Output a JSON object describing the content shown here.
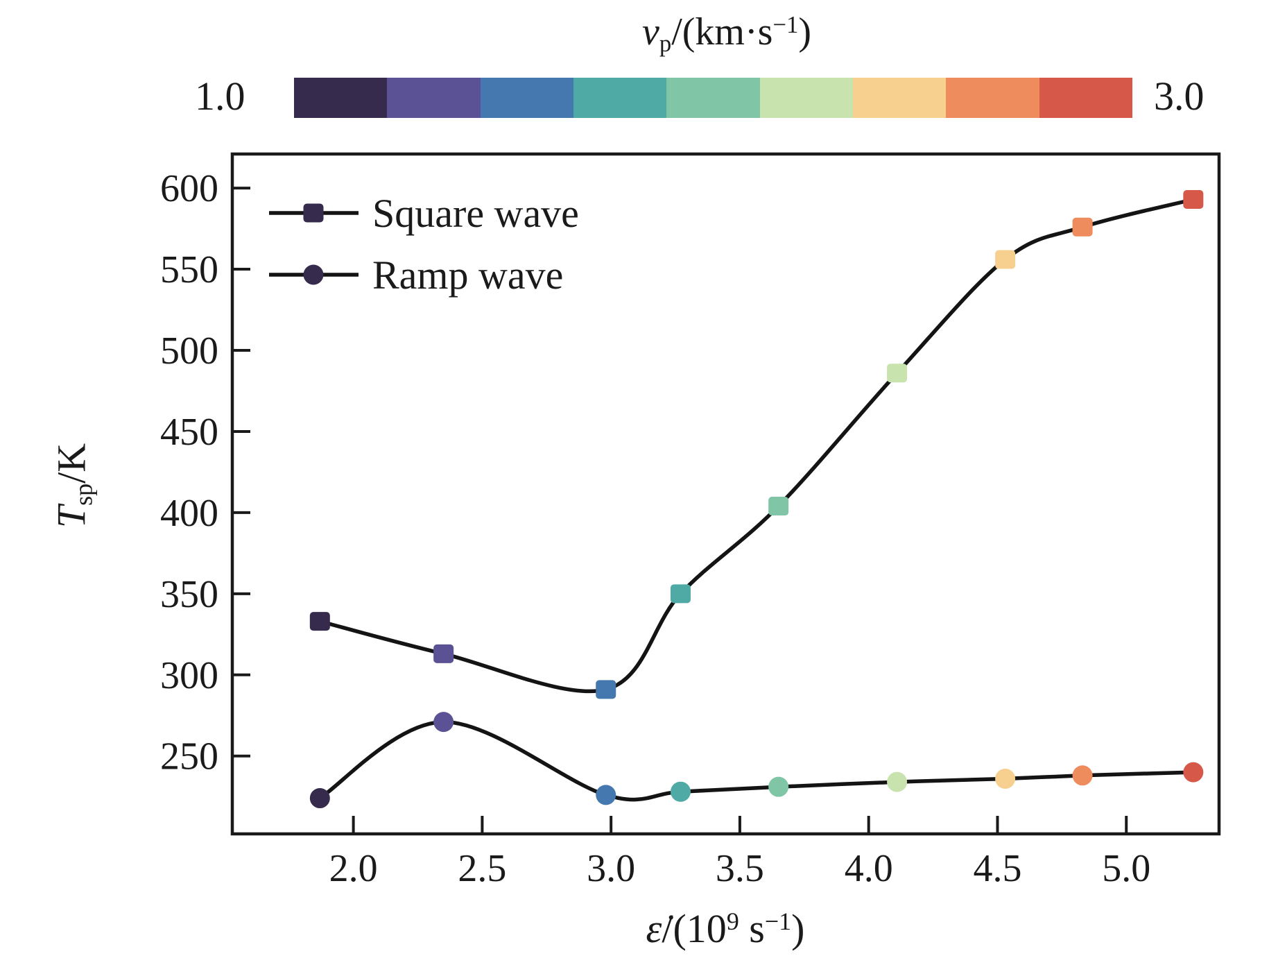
{
  "figure": {
    "background": "#ffffff",
    "frame_color": "#1a1a1a",
    "text_color": "#1a1a1a"
  },
  "colorbar": {
    "title_parts": {
      "var": "v",
      "sub": "p",
      "mid": "/(km·s",
      "sup": "−1",
      "close": ")"
    },
    "title_plain": "vp/(km·s−1)",
    "min_label": "1.0",
    "max_label": "3.0",
    "range": [
      1.0,
      3.0
    ],
    "segment_colors": [
      "#362b4d",
      "#5a5295",
      "#4478ae",
      "#4fa9a4",
      "#80c5a5",
      "#c9e3af",
      "#f7d08f",
      "#ef8c5d",
      "#d65849"
    ]
  },
  "legend": {
    "items": [
      {
        "label": "Square wave",
        "marker": "square",
        "marker_color": "#362b4d"
      },
      {
        "label": "Ramp wave",
        "marker": "circle",
        "marker_color": "#362b4d"
      }
    ]
  },
  "axes": {
    "ylabel_parts": {
      "var": "T",
      "sub": "sp",
      "rest": "/K"
    },
    "xlabel_parts": {
      "var": "ε̇",
      "rest": "/(10",
      "sup9": "9",
      "mid": " s",
      "supm1": "−1",
      "close": ")"
    },
    "xtick_labels": [
      "2.0",
      "2.5",
      "3.0",
      "3.5",
      "4.0",
      "4.5",
      "5.0"
    ],
    "ytick_labels": [
      "250",
      "300",
      "350",
      "400",
      "450",
      "500",
      "550",
      "600"
    ]
  },
  "chart_data": {
    "type": "line",
    "title": "",
    "xlabel": "ε̇/(10⁹ s⁻¹)",
    "ylabel": "Tsp/K",
    "colorbar_label": "vp/(km·s⁻¹)",
    "colorbar_range": [
      1.0,
      3.0
    ],
    "x": [
      1.87,
      2.35,
      2.98,
      3.27,
      3.65,
      4.11,
      4.53,
      4.83,
      5.26
    ],
    "series": [
      {
        "name": "Square wave",
        "marker": "square",
        "values": [
          333,
          313,
          291,
          350,
          404,
          486,
          556,
          576,
          593
        ]
      },
      {
        "name": "Ramp wave",
        "marker": "circle",
        "values": [
          224,
          271,
          226,
          228,
          231,
          234,
          236,
          238,
          240
        ]
      }
    ],
    "point_colors": [
      "#362b4d",
      "#5a5295",
      "#4478ae",
      "#4fa9a4",
      "#80c5a5",
      "#c9e3af",
      "#f7d08f",
      "#ef8c5d",
      "#d65849"
    ],
    "line_color": "#141414",
    "xticks": [
      2.0,
      2.5,
      3.0,
      3.5,
      4.0,
      4.5,
      5.0
    ],
    "yticks": [
      250,
      300,
      350,
      400,
      450,
      500,
      550,
      600
    ],
    "xlim": [
      1.53,
      5.36
    ],
    "ylim": [
      202,
      621
    ],
    "grid": false,
    "legend_position": "upper-left-inside"
  }
}
